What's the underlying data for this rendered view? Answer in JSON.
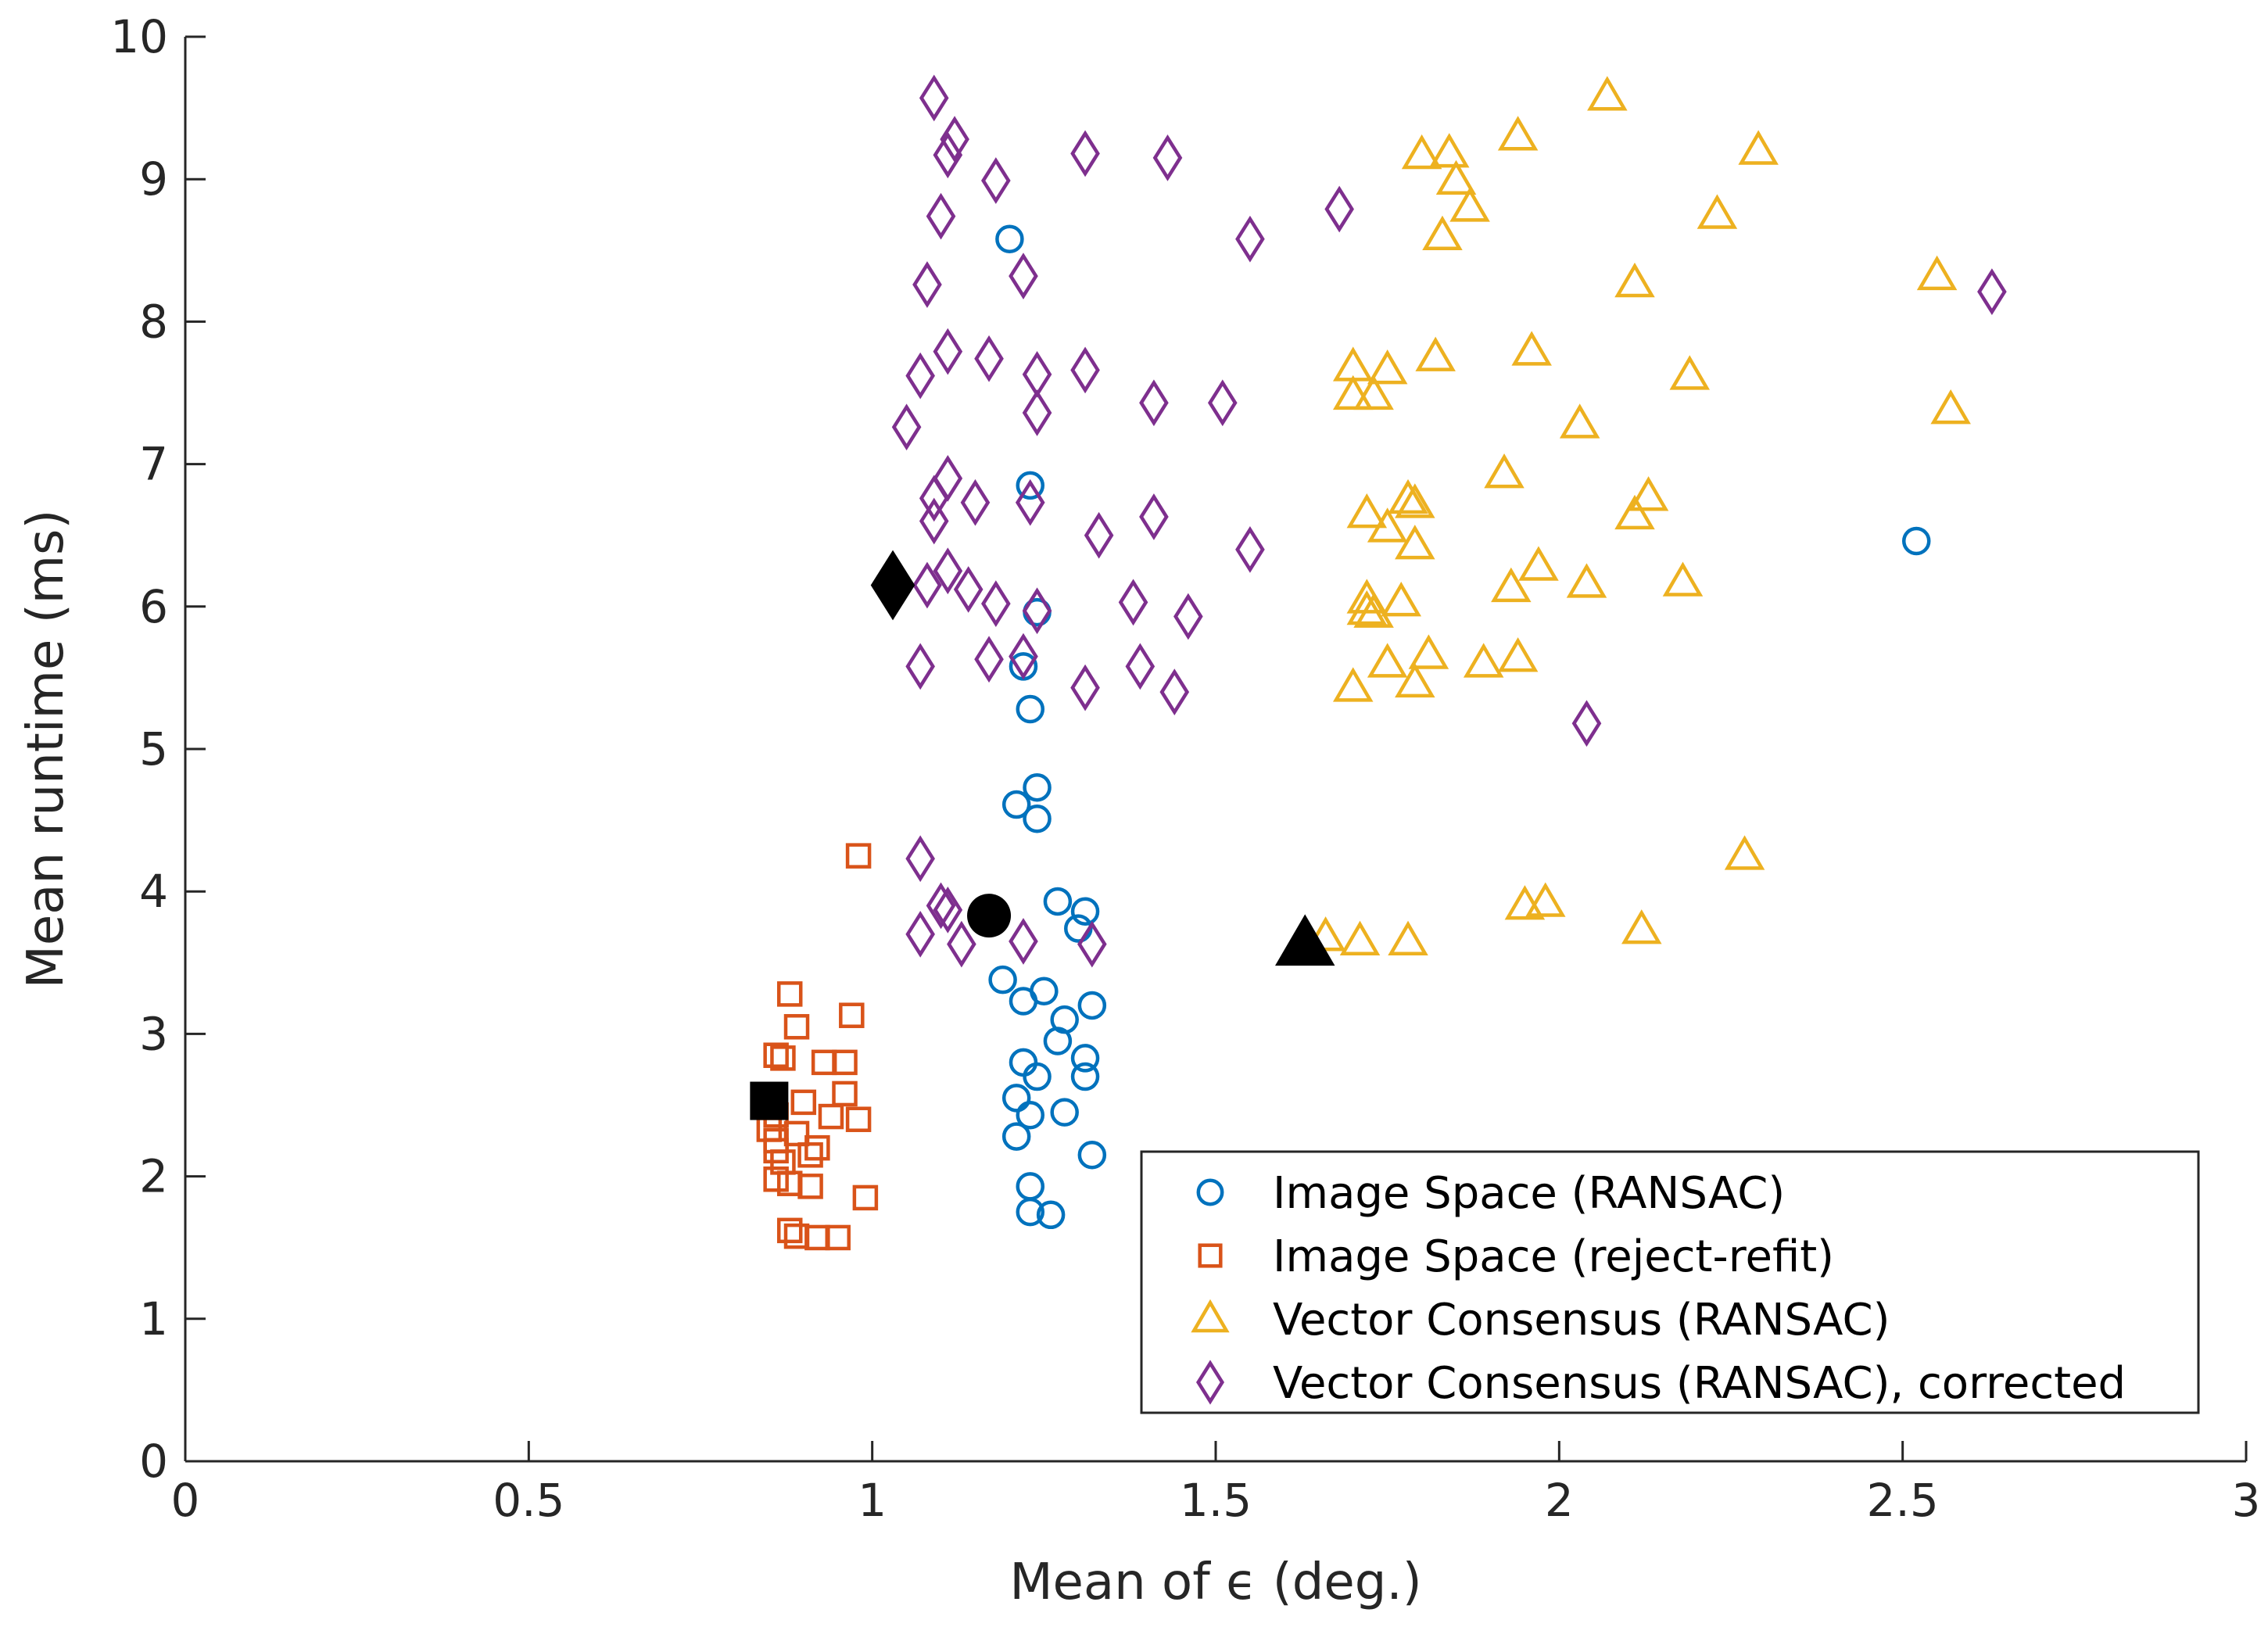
{
  "chart_data": {
    "type": "scatter",
    "title": "",
    "xlabel": "Mean of ϵ (deg.)",
    "ylabel": "Mean runtime (ms)",
    "xlim": [
      0,
      3
    ],
    "ylim": [
      0,
      10
    ],
    "xticks": [
      0,
      0.5,
      1,
      1.5,
      2,
      2.5,
      3
    ],
    "xtick_labels": [
      "0",
      "0.5",
      "1",
      "1.5",
      "2",
      "2.5",
      "3"
    ],
    "yticks": [
      0,
      1,
      2,
      3,
      4,
      5,
      6,
      7,
      8,
      9,
      10
    ],
    "ytick_labels": [
      "0",
      "1",
      "2",
      "3",
      "4",
      "5",
      "6",
      "7",
      "8",
      "9",
      "10"
    ],
    "grid": false,
    "legend_position": "bottom-right",
    "series": [
      {
        "name": "Image Space (RANSAC)",
        "marker": "circle",
        "color": "#0072BD",
        "points": [
          [
            1.2,
            8.58
          ],
          [
            1.23,
            6.85
          ],
          [
            1.24,
            5.96
          ],
          [
            1.22,
            5.58
          ],
          [
            1.23,
            5.28
          ],
          [
            1.21,
            4.61
          ],
          [
            1.24,
            4.73
          ],
          [
            1.24,
            4.51
          ],
          [
            1.27,
            3.93
          ],
          [
            1.31,
            3.86
          ],
          [
            1.3,
            3.74
          ],
          [
            1.19,
            3.38
          ],
          [
            1.25,
            3.3
          ],
          [
            1.22,
            3.23
          ],
          [
            1.28,
            3.1
          ],
          [
            1.32,
            3.2
          ],
          [
            1.27,
            2.95
          ],
          [
            1.31,
            2.83
          ],
          [
            1.22,
            2.8
          ],
          [
            1.24,
            2.7
          ],
          [
            1.31,
            2.7
          ],
          [
            1.21,
            2.55
          ],
          [
            1.23,
            2.43
          ],
          [
            1.28,
            2.45
          ],
          [
            1.21,
            2.28
          ],
          [
            1.32,
            2.15
          ],
          [
            1.23,
            1.93
          ],
          [
            1.23,
            1.75
          ],
          [
            1.26,
            1.73
          ],
          [
            2.52,
            6.46
          ]
        ],
        "summary": [
          1.17,
          3.83
        ]
      },
      {
        "name": "Image Space (reject-refit)",
        "marker": "square",
        "color": "#D95319",
        "points": [
          [
            0.98,
            4.25
          ],
          [
            0.88,
            3.28
          ],
          [
            0.97,
            3.13
          ],
          [
            0.89,
            3.05
          ],
          [
            0.86,
            2.85
          ],
          [
            0.87,
            2.83
          ],
          [
            0.93,
            2.8
          ],
          [
            0.96,
            2.8
          ],
          [
            0.96,
            2.58
          ],
          [
            0.9,
            2.52
          ],
          [
            0.86,
            2.43
          ],
          [
            0.94,
            2.42
          ],
          [
            0.98,
            2.4
          ],
          [
            0.85,
            2.33
          ],
          [
            0.89,
            2.3
          ],
          [
            0.86,
            2.25
          ],
          [
            0.92,
            2.2
          ],
          [
            0.86,
            2.18
          ],
          [
            0.91,
            2.15
          ],
          [
            0.87,
            2.1
          ],
          [
            0.86,
            1.98
          ],
          [
            0.88,
            1.95
          ],
          [
            0.91,
            1.93
          ],
          [
            0.99,
            1.85
          ],
          [
            0.88,
            1.62
          ],
          [
            0.89,
            1.58
          ],
          [
            0.92,
            1.57
          ],
          [
            0.95,
            1.57
          ]
        ],
        "summary": [
          0.85,
          2.53
        ]
      },
      {
        "name": "Vector Consensus (RANSAC)",
        "marker": "triangle",
        "color": "#EDB120",
        "points": [
          [
            2.07,
            9.58
          ],
          [
            1.94,
            9.3
          ],
          [
            2.29,
            9.2
          ],
          [
            1.8,
            9.17
          ],
          [
            1.84,
            9.18
          ],
          [
            1.85,
            8.99
          ],
          [
            1.87,
            8.8
          ],
          [
            2.23,
            8.75
          ],
          [
            1.83,
            8.6
          ],
          [
            2.55,
            8.32
          ],
          [
            2.11,
            8.27
          ],
          [
            1.82,
            7.75
          ],
          [
            1.96,
            7.79
          ],
          [
            1.7,
            7.68
          ],
          [
            1.75,
            7.66
          ],
          [
            1.7,
            7.48
          ],
          [
            1.73,
            7.48
          ],
          [
            2.19,
            7.62
          ],
          [
            2.57,
            7.38
          ],
          [
            2.03,
            7.28
          ],
          [
            1.92,
            6.93
          ],
          [
            2.13,
            6.77
          ],
          [
            1.78,
            6.75
          ],
          [
            1.79,
            6.72
          ],
          [
            2.11,
            6.64
          ],
          [
            1.72,
            6.65
          ],
          [
            1.75,
            6.55
          ],
          [
            1.79,
            6.43
          ],
          [
            1.97,
            6.28
          ],
          [
            1.93,
            6.13
          ],
          [
            2.04,
            6.16
          ],
          [
            2.18,
            6.17
          ],
          [
            1.72,
            6.05
          ],
          [
            1.77,
            6.03
          ],
          [
            1.73,
            5.95
          ],
          [
            1.72,
            5.97
          ],
          [
            1.81,
            5.66
          ],
          [
            1.94,
            5.64
          ],
          [
            1.89,
            5.6
          ],
          [
            1.75,
            5.6
          ],
          [
            1.79,
            5.46
          ],
          [
            1.7,
            5.43
          ],
          [
            2.27,
            4.25
          ],
          [
            1.95,
            3.9
          ],
          [
            1.98,
            3.92
          ],
          [
            2.12,
            3.73
          ],
          [
            1.66,
            3.68
          ],
          [
            1.71,
            3.65
          ],
          [
            1.78,
            3.65
          ]
        ],
        "summary": [
          1.63,
          3.63
        ]
      },
      {
        "name": "Vector Consensus (RANSAC), corrected",
        "marker": "diamond",
        "color": "#7E2F8E",
        "points": [
          [
            1.09,
            9.57
          ],
          [
            1.12,
            9.28
          ],
          [
            1.11,
            9.17
          ],
          [
            1.31,
            9.18
          ],
          [
            1.43,
            9.15
          ],
          [
            1.18,
            8.99
          ],
          [
            1.68,
            8.79
          ],
          [
            1.1,
            8.74
          ],
          [
            1.55,
            8.58
          ],
          [
            1.22,
            8.32
          ],
          [
            1.08,
            8.26
          ],
          [
            2.63,
            8.21
          ],
          [
            1.11,
            7.79
          ],
          [
            1.17,
            7.74
          ],
          [
            1.24,
            7.63
          ],
          [
            1.31,
            7.66
          ],
          [
            1.07,
            7.62
          ],
          [
            1.41,
            7.43
          ],
          [
            1.51,
            7.43
          ],
          [
            1.24,
            7.36
          ],
          [
            1.05,
            7.26
          ],
          [
            1.11,
            6.9
          ],
          [
            1.09,
            6.76
          ],
          [
            1.15,
            6.73
          ],
          [
            1.23,
            6.73
          ],
          [
            1.41,
            6.63
          ],
          [
            1.09,
            6.6
          ],
          [
            1.33,
            6.5
          ],
          [
            1.55,
            6.4
          ],
          [
            1.11,
            6.25
          ],
          [
            1.14,
            6.12
          ],
          [
            1.08,
            6.15
          ],
          [
            1.18,
            6.02
          ],
          [
            1.38,
            6.03
          ],
          [
            1.24,
            5.97
          ],
          [
            1.46,
            5.93
          ],
          [
            1.22,
            5.65
          ],
          [
            1.17,
            5.63
          ],
          [
            1.07,
            5.58
          ],
          [
            1.39,
            5.58
          ],
          [
            1.31,
            5.43
          ],
          [
            1.44,
            5.4
          ],
          [
            2.04,
            5.18
          ],
          [
            1.07,
            4.23
          ],
          [
            1.1,
            3.9
          ],
          [
            1.11,
            3.87
          ],
          [
            1.07,
            3.7
          ],
          [
            1.13,
            3.63
          ],
          [
            1.22,
            3.65
          ],
          [
            1.32,
            3.63
          ]
        ],
        "summary": [
          1.03,
          6.15
        ]
      }
    ]
  }
}
